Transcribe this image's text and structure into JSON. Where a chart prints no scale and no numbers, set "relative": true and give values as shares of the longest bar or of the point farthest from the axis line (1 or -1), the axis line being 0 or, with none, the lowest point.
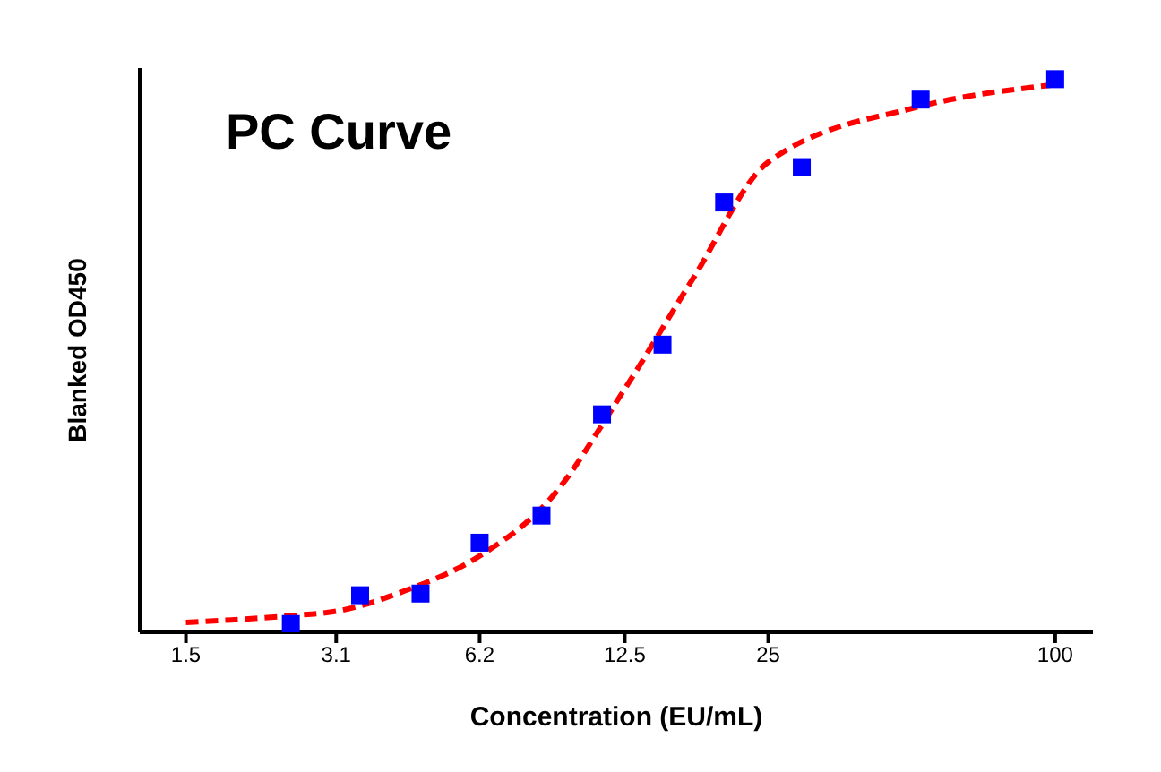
{
  "chart_data": {
    "type": "scatter",
    "title": "PC Curve",
    "xlabel": "Concentration (EU/mL)",
    "ylabel": "Blanked OD450",
    "relative": true,
    "log": "x",
    "xlim": [
      1.2,
      120
    ],
    "xticks": [
      1.5,
      3.1,
      6.2,
      12.5,
      25,
      100
    ],
    "series": [
      {
        "color": "#0000ff",
        "marker": "square",
        "x": [
          2.49,
          3.48,
          4.66,
          6.2,
          8.36,
          11.2,
          15.0,
          20.2,
          29.4,
          52.2,
          100
        ],
        "values": [
          0.015,
          0.067,
          0.07,
          0.162,
          0.211,
          0.394,
          0.52,
          0.777,
          0.841,
          0.963,
          1.0
        ]
      },
      {
        "type": "line",
        "color": "#ff0000",
        "marker": "none",
        "line_style": "dashed",
        "x": [
          1.5,
          2.49,
          3.1,
          4.35,
          6.2,
          8.7,
          12.5,
          17.4,
          25,
          51.7,
          100
        ],
        "values": [
          0.018,
          0.03,
          0.038,
          0.076,
          0.138,
          0.24,
          0.44,
          0.64,
          0.85,
          0.95,
          0.99
        ]
      }
    ]
  }
}
